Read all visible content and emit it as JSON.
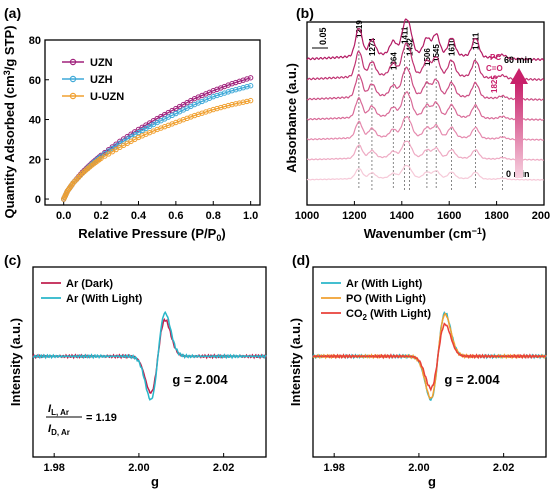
{
  "chart_data": [
    {
      "panel": "(a)",
      "type": "line",
      "xlabel_main": "Relative Pressure (P/P",
      "xlabel_sub": "0",
      "xlabel_tail": ")",
      "ylabel_main": "Quantity Adsorbed (cm",
      "ylabel_sup": "3",
      "ylabel_tail": "/g STP)",
      "xlim": [
        -0.1,
        1.05
      ],
      "ylim": [
        -3,
        80
      ],
      "xticks": [
        "0.0",
        "0.2",
        "0.4",
        "0.6",
        "0.8",
        "1.0"
      ],
      "xtick_values": [
        0.0,
        0.2,
        0.4,
        0.6,
        0.8,
        1.0
      ],
      "yticks": [
        "0",
        "20",
        "40",
        "60",
        "80"
      ],
      "ytick_values": [
        0,
        20,
        40,
        60,
        80
      ],
      "legend_position": "top-left",
      "series": [
        {
          "name": "UZN",
          "color": "#a0217c",
          "x": [
            0,
            0.02,
            0.05,
            0.1,
            0.15,
            0.2,
            0.3,
            0.4,
            0.5,
            0.6,
            0.7,
            0.8,
            0.9,
            1.0
          ],
          "y": [
            0,
            4,
            8,
            13.5,
            18,
            22,
            29,
            35,
            40.5,
            45.5,
            50.5,
            54.5,
            58,
            61
          ]
        },
        {
          "name": "UZH",
          "color": "#3fa9d8",
          "x": [
            0,
            0.02,
            0.05,
            0.1,
            0.15,
            0.2,
            0.3,
            0.4,
            0.5,
            0.6,
            0.7,
            0.8,
            0.9,
            1.0
          ],
          "y": [
            0,
            4,
            8,
            13,
            17.5,
            21.5,
            28,
            33.5,
            38.5,
            43,
            47.5,
            51.5,
            54.5,
            57
          ]
        },
        {
          "name": "U-UZN",
          "color": "#f0a030",
          "x": [
            0,
            0.02,
            0.05,
            0.1,
            0.15,
            0.2,
            0.3,
            0.4,
            0.5,
            0.6,
            0.7,
            0.8,
            0.9,
            1.0
          ],
          "y": [
            0,
            4,
            8,
            13,
            17,
            20.5,
            26,
            31,
            35,
            38.5,
            42,
            45,
            47.5,
            49.5
          ]
        }
      ]
    },
    {
      "panel": "(b)",
      "type": "line",
      "xlabel_main": "Wavenumber (cm",
      "xlabel_sup": "−1",
      "xlabel_tail": ")",
      "ylabel": "Absorbance (a.u.)",
      "xlim": [
        1000,
        2000
      ],
      "xticks": [
        "1000",
        "1200",
        "1400",
        "1600",
        "1800",
        "2000"
      ],
      "xtick_values": [
        1000,
        1200,
        1400,
        1600,
        1800,
        2000
      ],
      "scale_bar": "0.05",
      "peaks": [
        "1219",
        "1274",
        "1364",
        "1411",
        "1432",
        "1506",
        "1545",
        "1610",
        "1711"
      ],
      "peak_values": [
        1219,
        1274,
        1364,
        1411,
        1432,
        1506,
        1545,
        1610,
        1711
      ],
      "pc_label": "PC",
      "co_label": "C=O",
      "pc_peak": "1825",
      "pc_peak_value": 1825,
      "time_top": "60 min",
      "time_bottom": "0 min",
      "series_colors": [
        "#f6c9d8",
        "#eeaac3",
        "#e58aae",
        "#d96b98",
        "#cc4e84",
        "#c03372",
        "#b31a63"
      ],
      "peak_amplitudes": {
        "1219": 1.0,
        "1274": 0.55,
        "1364": 0.45,
        "1411": 0.85,
        "1432": 0.75,
        "1506": 0.55,
        "1545": 0.7,
        "1610": 0.6,
        "1711": 0.65,
        "1825": 0.12
      }
    },
    {
      "panel": "(c)",
      "type": "line",
      "xlabel": "g",
      "ylabel": "Intensity (a.u.)",
      "xlim": [
        1.975,
        2.03
      ],
      "xticks": [
        "1.98",
        "2.00",
        "2.02"
      ],
      "xtick_values": [
        1.98,
        2.0,
        2.02
      ],
      "g_value": "g = 2.004",
      "ratio_num": "I",
      "ratio_num_sub": "L, Ar",
      "ratio_den": "I",
      "ratio_den_sub": "D, Ar",
      "ratio_value": "= 1.19",
      "legend_position": "top-left",
      "series": [
        {
          "name": "Ar (Dark)",
          "color": "#c0204f",
          "amplitude": 0.84
        },
        {
          "name": "Ar (With Light)",
          "color": "#29b6c9",
          "amplitude": 1.0
        }
      ]
    },
    {
      "panel": "(d)",
      "type": "line",
      "xlabel": "g",
      "ylabel": "Intensity (a.u.)",
      "xlim": [
        1.975,
        2.03
      ],
      "xticks": [
        "1.98",
        "2.00",
        "2.02"
      ],
      "xtick_values": [
        1.98,
        2.0,
        2.02
      ],
      "g_value": "g = 2.004",
      "legend_position": "top-left",
      "series": [
        {
          "name": "Ar (With Light)",
          "color": "#29b6c9",
          "amplitude": 1.0
        },
        {
          "name": "PO (With Light)",
          "color": "#f0a030",
          "amplitude": 0.97
        },
        {
          "name_main": "CO",
          "name_sub": "2",
          "name_tail": " (With Light)",
          "name": "CO2 (With Light)",
          "color": "#e8403a",
          "amplitude": 0.74
        }
      ]
    }
  ]
}
